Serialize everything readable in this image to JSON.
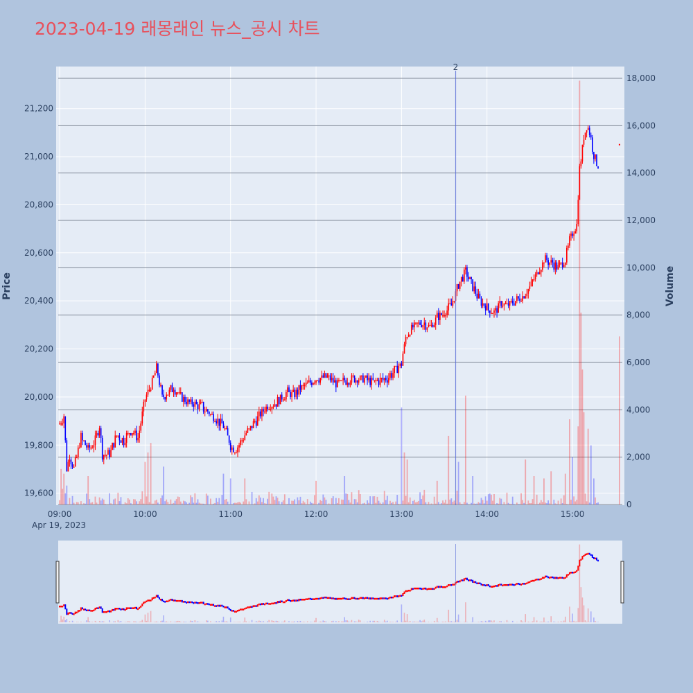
{
  "title": "2023-04-19 래몽래인 뉴스_공시 차트",
  "colors": {
    "page_bg": "#b0c4de",
    "plot_bg": "#e5ecf6",
    "title": "#e8505b",
    "up": "#ff0000",
    "down": "#0000ff",
    "grid": "#ffffff",
    "volume_grid": "#7f8896",
    "text": "#2a3f5f"
  },
  "chart_data": {
    "type": "candlestick",
    "price_axis": {
      "label": "Price",
      "ticks": [
        19600,
        19800,
        20000,
        20200,
        20400,
        20600,
        20800,
        21000,
        21200
      ],
      "tick_labels": [
        "19,600",
        "19,800",
        "20,000",
        "20,200",
        "20,400",
        "20,600",
        "20,800",
        "21,000",
        "21,200"
      ],
      "range": [
        19550,
        21375
      ]
    },
    "volume_axis": {
      "label": "Volume",
      "ticks": [
        0,
        2000,
        4000,
        6000,
        8000,
        10000,
        12000,
        14000,
        16000,
        18000
      ],
      "tick_labels": [
        "0",
        "2,000",
        "4,000",
        "6,000",
        "8,000",
        "10,000",
        "12,000",
        "14,000",
        "16,000",
        "18,000"
      ],
      "range": [
        0,
        18000
      ]
    },
    "time_axis": {
      "date_label": "Apr 19, 2023",
      "ticks": [
        "09:00",
        "10:00",
        "11:00",
        "12:00",
        "13:00",
        "14:00",
        "15:00"
      ],
      "range": [
        "08:59",
        "15:35"
      ]
    },
    "grid": true,
    "range_slider": true,
    "news_markers": [
      {
        "time": "13:38",
        "label": "2"
      }
    ],
    "price_anchors": [
      [
        "09:00",
        19890
      ],
      [
        "09:03",
        19920
      ],
      [
        "09:05",
        19700
      ],
      [
        "09:07",
        19760
      ],
      [
        "09:10",
        19700
      ],
      [
        "09:15",
        19830
      ],
      [
        "09:20",
        19780
      ],
      [
        "09:25",
        19820
      ],
      [
        "09:28",
        19880
      ],
      [
        "09:30",
        19760
      ],
      [
        "09:35",
        19760
      ],
      [
        "09:40",
        19840
      ],
      [
        "09:45",
        19820
      ],
      [
        "09:50",
        19860
      ],
      [
        "09:55",
        19830
      ],
      [
        "10:00",
        19990
      ],
      [
        "10:05",
        20060
      ],
      [
        "10:08",
        20120
      ],
      [
        "10:12",
        20000
      ],
      [
        "10:20",
        20040
      ],
      [
        "10:25",
        20000
      ],
      [
        "10:30",
        19980
      ],
      [
        "10:40",
        19960
      ],
      [
        "10:50",
        19910
      ],
      [
        "10:55",
        19880
      ],
      [
        "11:00",
        19800
      ],
      [
        "11:03",
        19780
      ],
      [
        "11:05",
        19790
      ],
      [
        "11:10",
        19840
      ],
      [
        "11:15",
        19880
      ],
      [
        "11:20",
        19920
      ],
      [
        "11:25",
        19960
      ],
      [
        "11:30",
        19970
      ],
      [
        "11:35",
        19990
      ],
      [
        "11:40",
        20020
      ],
      [
        "11:45",
        20010
      ],
      [
        "11:50",
        20040
      ],
      [
        "11:55",
        20060
      ],
      [
        "12:00",
        20080
      ],
      [
        "12:10",
        20080
      ],
      [
        "12:15",
        20050
      ],
      [
        "12:20",
        20070
      ],
      [
        "12:30",
        20080
      ],
      [
        "12:40",
        20060
      ],
      [
        "12:50",
        20080
      ],
      [
        "12:55",
        20110
      ],
      [
        "13:00",
        20140
      ],
      [
        "13:03",
        20250
      ],
      [
        "13:08",
        20290
      ],
      [
        "13:15",
        20310
      ],
      [
        "13:20",
        20290
      ],
      [
        "13:25",
        20330
      ],
      [
        "13:30",
        20350
      ],
      [
        "13:35",
        20380
      ],
      [
        "13:40",
        20470
      ],
      [
        "13:45",
        20520
      ],
      [
        "13:50",
        20460
      ],
      [
        "13:55",
        20400
      ],
      [
        "14:00",
        20370
      ],
      [
        "14:05",
        20350
      ],
      [
        "14:10",
        20390
      ],
      [
        "14:15",
        20380
      ],
      [
        "14:20",
        20400
      ],
      [
        "14:25",
        20420
      ],
      [
        "14:30",
        20460
      ],
      [
        "14:35",
        20510
      ],
      [
        "14:40",
        20570
      ],
      [
        "14:45",
        20560
      ],
      [
        "14:50",
        20540
      ],
      [
        "14:55",
        20570
      ],
      [
        "14:58",
        20650
      ],
      [
        "15:00",
        20680
      ],
      [
        "15:03",
        20720
      ],
      [
        "15:05",
        20950
      ],
      [
        "15:08",
        21080
      ],
      [
        "15:10",
        21130
      ],
      [
        "15:12",
        21100
      ],
      [
        "15:15",
        21010
      ],
      [
        "15:18",
        20960
      ]
    ],
    "volume_spikes": [
      [
        "09:01",
        1500
      ],
      [
        "09:03",
        1300
      ],
      [
        "09:05",
        800
      ],
      [
        "09:20",
        1200
      ],
      [
        "09:41",
        500
      ],
      [
        "10:00",
        1800
      ],
      [
        "10:02",
        2200
      ],
      [
        "10:04",
        2600
      ],
      [
        "10:13",
        1600
      ],
      [
        "10:55",
        1300
      ],
      [
        "11:00",
        1100
      ],
      [
        "11:10",
        1100
      ],
      [
        "12:00",
        1000
      ],
      [
        "12:20",
        1200
      ],
      [
        "13:00",
        4100
      ],
      [
        "13:02",
        2200
      ],
      [
        "13:04",
        1900
      ],
      [
        "13:25",
        1000
      ],
      [
        "13:33",
        2900
      ],
      [
        "13:40",
        1800
      ],
      [
        "13:45",
        4600
      ],
      [
        "13:50",
        1200
      ],
      [
        "14:27",
        1900
      ],
      [
        "14:33",
        1200
      ],
      [
        "14:40",
        1100
      ],
      [
        "14:45",
        1400
      ],
      [
        "14:55",
        1300
      ],
      [
        "14:58",
        3600
      ],
      [
        "15:00",
        2000
      ],
      [
        "15:04",
        3300
      ],
      [
        "15:05",
        17900
      ],
      [
        "15:06",
        8100
      ],
      [
        "15:07",
        5700
      ],
      [
        "15:08",
        3900
      ],
      [
        "15:11",
        3200
      ],
      [
        "15:13",
        2500
      ],
      [
        "15:15",
        1100
      ]
    ],
    "trailing_marks": [
      {
        "time": "15:33",
        "price": 21050,
        "volume": 7100
      }
    ]
  }
}
